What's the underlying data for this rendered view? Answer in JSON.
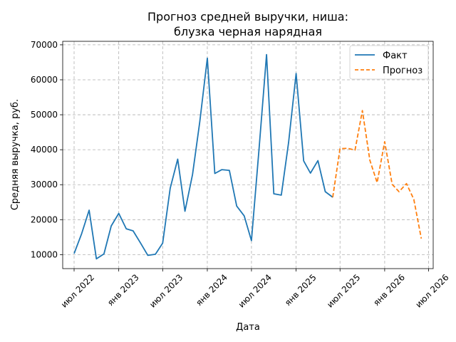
{
  "chart_data": {
    "type": "line",
    "title_lines": [
      "Прогноз средней выручки, ниша:",
      "блузка черная нарядная"
    ],
    "xlabel": "Дата",
    "ylabel": "Средняя выручка, руб.",
    "grid": true,
    "legend_position": "top-right",
    "x_axis": {
      "type": "date",
      "range": [
        "2022-05-15",
        "2026-07-20"
      ],
      "ticks": [
        {
          "date": "2022-07-01",
          "label": "июл 2022"
        },
        {
          "date": "2023-01-01",
          "label": "янв 2023"
        },
        {
          "date": "2023-07-01",
          "label": "июл 2023"
        },
        {
          "date": "2024-01-01",
          "label": "янв 2024"
        },
        {
          "date": "2024-07-01",
          "label": "июл 2024"
        },
        {
          "date": "2025-01-01",
          "label": "янв 2025"
        },
        {
          "date": "2025-07-01",
          "label": "июл 2025"
        },
        {
          "date": "2026-01-01",
          "label": "янв 2026"
        },
        {
          "date": "2026-07-01",
          "label": "июл 2026"
        }
      ]
    },
    "y_axis": {
      "range": [
        6000,
        71000
      ],
      "ticks": [
        {
          "value": 10000,
          "label": "10000"
        },
        {
          "value": 20000,
          "label": "20000"
        },
        {
          "value": 30000,
          "label": "30000"
        },
        {
          "value": 40000,
          "label": "40000"
        },
        {
          "value": 50000,
          "label": "50000"
        },
        {
          "value": 60000,
          "label": "60000"
        },
        {
          "value": 70000,
          "label": "70000"
        }
      ]
    },
    "series": [
      {
        "name": "Факт",
        "color": "#1f77b4",
        "style": "solid",
        "points": [
          [
            "2022-07-01",
            10300
          ],
          [
            "2022-08-01",
            16000
          ],
          [
            "2022-09-01",
            22700
          ],
          [
            "2022-10-01",
            8800
          ],
          [
            "2022-11-01",
            10200
          ],
          [
            "2022-12-01",
            18200
          ],
          [
            "2023-01-01",
            21800
          ],
          [
            "2023-02-01",
            17400
          ],
          [
            "2023-03-01",
            16800
          ],
          [
            "2023-04-01",
            13300
          ],
          [
            "2023-05-01",
            9800
          ],
          [
            "2023-06-01",
            10100
          ],
          [
            "2023-07-01",
            13300
          ],
          [
            "2023-08-01",
            29000
          ],
          [
            "2023-09-01",
            37300
          ],
          [
            "2023-10-01",
            22400
          ],
          [
            "2023-11-01",
            32900
          ],
          [
            "2023-12-01",
            48000
          ],
          [
            "2024-01-01",
            66200
          ],
          [
            "2024-02-01",
            33200
          ],
          [
            "2024-03-01",
            34300
          ],
          [
            "2024-04-01",
            34100
          ],
          [
            "2024-05-01",
            23900
          ],
          [
            "2024-06-01",
            21100
          ],
          [
            "2024-07-01",
            14000
          ],
          [
            "2024-08-01",
            40000
          ],
          [
            "2024-09-01",
            67200
          ],
          [
            "2024-10-01",
            27400
          ],
          [
            "2024-11-01",
            27000
          ],
          [
            "2024-12-01",
            42000
          ],
          [
            "2025-01-01",
            61800
          ],
          [
            "2025-02-01",
            36800
          ],
          [
            "2025-03-01",
            33300
          ],
          [
            "2025-04-01",
            36900
          ],
          [
            "2025-05-01",
            28000
          ],
          [
            "2025-06-01",
            26400
          ]
        ]
      },
      {
        "name": "Прогноз",
        "color": "#ff7f0e",
        "style": "dashed",
        "points": [
          [
            "2025-06-01",
            26400
          ],
          [
            "2025-07-01",
            40300
          ],
          [
            "2025-08-01",
            40400
          ],
          [
            "2025-09-01",
            39900
          ],
          [
            "2025-10-01",
            51200
          ],
          [
            "2025-11-01",
            37000
          ],
          [
            "2025-12-01",
            30600
          ],
          [
            "2026-01-01",
            42300
          ],
          [
            "2026-02-01",
            30100
          ],
          [
            "2026-03-01",
            28000
          ],
          [
            "2026-04-01",
            30300
          ],
          [
            "2026-05-01",
            25800
          ],
          [
            "2026-06-01",
            14600
          ]
        ]
      }
    ]
  }
}
